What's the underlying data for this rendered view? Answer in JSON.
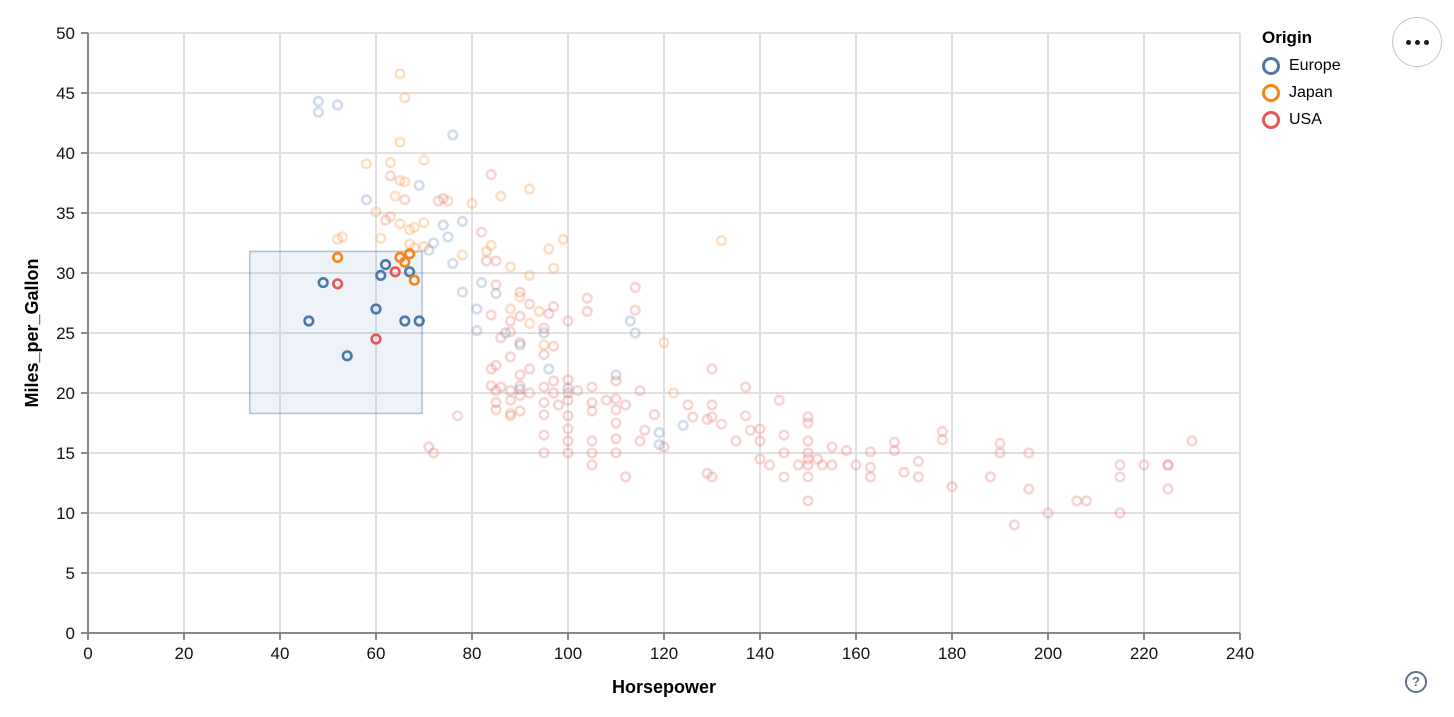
{
  "chart_data": {
    "type": "scatter",
    "title": "",
    "xlabel": "Horsepower",
    "ylabel": "Miles_per_Gallon",
    "xlim": [
      0,
      240
    ],
    "ylim": [
      0,
      50
    ],
    "xticks": [
      0,
      20,
      40,
      60,
      80,
      100,
      120,
      140,
      160,
      180,
      200,
      220,
      240
    ],
    "yticks": [
      0,
      5,
      10,
      15,
      20,
      25,
      30,
      35,
      40,
      45,
      50
    ],
    "grid": true,
    "legend": {
      "title": "Origin",
      "position": "top-right",
      "entries": [
        {
          "label": "Europe",
          "color": "#4c78a8"
        },
        {
          "label": "Japan",
          "color": "#f58518"
        },
        {
          "label": "USA",
          "color": "#e45756"
        }
      ]
    },
    "colors": {
      "Europe": "#4c78a8",
      "Japan": "#f58518",
      "USA": "#e45756"
    },
    "brush_selection": {
      "x": [
        33.7,
        69.6
      ],
      "y": [
        18.3,
        31.8
      ]
    },
    "unselected_opacity": 0.25,
    "points_format": [
      "horsepower",
      "mpg",
      "origin",
      "selected"
    ],
    "points": [
      [
        46,
        26,
        "Europe",
        1
      ],
      [
        49,
        29.2,
        "Europe",
        1
      ],
      [
        54,
        23.1,
        "Europe",
        1
      ],
      [
        60,
        27,
        "Europe",
        1
      ],
      [
        66,
        26,
        "Europe",
        1
      ],
      [
        69,
        26,
        "Europe",
        1
      ],
      [
        62,
        30.7,
        "Europe",
        1
      ],
      [
        61,
        29.8,
        "Europe",
        1
      ],
      [
        67,
        30.1,
        "Europe",
        1
      ],
      [
        52,
        31.3,
        "Japan",
        1
      ],
      [
        65,
        31.3,
        "Japan",
        1
      ],
      [
        67,
        31.6,
        "Japan",
        1
      ],
      [
        66,
        30.9,
        "Japan",
        1
      ],
      [
        68,
        29.4,
        "Japan",
        1
      ],
      [
        52,
        29.1,
        "USA",
        1
      ],
      [
        60,
        24.5,
        "USA",
        1
      ],
      [
        64,
        30.1,
        "USA",
        1
      ],
      [
        48,
        44.3,
        "Europe",
        0
      ],
      [
        48,
        43.4,
        "Europe",
        0
      ],
      [
        52,
        44,
        "Europe",
        0
      ],
      [
        76,
        41.5,
        "Europe",
        0
      ],
      [
        58,
        36.1,
        "Europe",
        0
      ],
      [
        69,
        37.3,
        "Europe",
        0
      ],
      [
        78,
        34.3,
        "Europe",
        0
      ],
      [
        74,
        34,
        "Europe",
        0
      ],
      [
        75,
        33,
        "Europe",
        0
      ],
      [
        72,
        32.5,
        "Europe",
        0
      ],
      [
        71,
        31.9,
        "Europe",
        0
      ],
      [
        76,
        30.8,
        "Europe",
        0
      ],
      [
        82,
        29.2,
        "Europe",
        0
      ],
      [
        78,
        28.4,
        "Europe",
        0
      ],
      [
        85,
        28.3,
        "Europe",
        0
      ],
      [
        81,
        27,
        "Europe",
        0
      ],
      [
        81,
        25.2,
        "Europe",
        0
      ],
      [
        113,
        26,
        "Europe",
        0
      ],
      [
        114,
        25,
        "Europe",
        0
      ],
      [
        87,
        25,
        "Europe",
        0
      ],
      [
        90,
        24,
        "Europe",
        0
      ],
      [
        95,
        25,
        "Europe",
        0
      ],
      [
        96,
        22,
        "Europe",
        0
      ],
      [
        100,
        20.4,
        "Europe",
        0
      ],
      [
        90,
        20.3,
        "Europe",
        0
      ],
      [
        110,
        21.5,
        "Europe",
        0
      ],
      [
        119,
        16.7,
        "Europe",
        0
      ],
      [
        119,
        15.7,
        "Europe",
        0
      ],
      [
        124,
        17.3,
        "Europe",
        0
      ],
      [
        65,
        46.6,
        "Japan",
        0
      ],
      [
        66,
        44.6,
        "Japan",
        0
      ],
      [
        65,
        40.9,
        "Japan",
        0
      ],
      [
        58,
        39.1,
        "Japan",
        0
      ],
      [
        63,
        39.2,
        "Japan",
        0
      ],
      [
        70,
        39.4,
        "Japan",
        0
      ],
      [
        65,
        37.7,
        "Japan",
        0
      ],
      [
        64,
        36.4,
        "Japan",
        0
      ],
      [
        66,
        37.6,
        "Japan",
        0
      ],
      [
        60,
        35.1,
        "Japan",
        0
      ],
      [
        67,
        33.6,
        "Japan",
        0
      ],
      [
        65,
        34.1,
        "Japan",
        0
      ],
      [
        68,
        33.8,
        "Japan",
        0
      ],
      [
        63,
        34.7,
        "Japan",
        0
      ],
      [
        70,
        34.2,
        "Japan",
        0
      ],
      [
        53,
        33,
        "Japan",
        0
      ],
      [
        52,
        32.8,
        "Japan",
        0
      ],
      [
        67,
        32.4,
        "Japan",
        0
      ],
      [
        68,
        32.1,
        "Japan",
        0
      ],
      [
        70,
        32.2,
        "Japan",
        0
      ],
      [
        61,
        32.9,
        "Japan",
        0
      ],
      [
        75,
        36,
        "Japan",
        0
      ],
      [
        80,
        35.8,
        "Japan",
        0
      ],
      [
        86,
        36.4,
        "Japan",
        0
      ],
      [
        92,
        37,
        "Japan",
        0
      ],
      [
        84,
        32.3,
        "Japan",
        0
      ],
      [
        83,
        31.8,
        "Japan",
        0
      ],
      [
        78,
        31.5,
        "Japan",
        0
      ],
      [
        88,
        30.5,
        "Japan",
        0
      ],
      [
        92,
        29.8,
        "Japan",
        0
      ],
      [
        97,
        30.4,
        "Japan",
        0
      ],
      [
        88,
        27,
        "Japan",
        0
      ],
      [
        90,
        28,
        "Japan",
        0
      ],
      [
        94,
        26.8,
        "Japan",
        0
      ],
      [
        96,
        32,
        "Japan",
        0
      ],
      [
        99,
        32.8,
        "Japan",
        0
      ],
      [
        132,
        32.7,
        "Japan",
        0
      ],
      [
        120,
        24.2,
        "Japan",
        0
      ],
      [
        92,
        25.8,
        "Japan",
        0
      ],
      [
        95,
        24,
        "Japan",
        0
      ],
      [
        122,
        20,
        "Japan",
        0
      ],
      [
        88,
        18.3,
        "Japan",
        0
      ],
      [
        63,
        38.1,
        "USA",
        0
      ],
      [
        66,
        36.1,
        "USA",
        0
      ],
      [
        74,
        36.2,
        "USA",
        0
      ],
      [
        73,
        36,
        "USA",
        0
      ],
      [
        84,
        38.2,
        "USA",
        0
      ],
      [
        62,
        34.4,
        "USA",
        0
      ],
      [
        82,
        33.4,
        "USA",
        0
      ],
      [
        83,
        31,
        "USA",
        0
      ],
      [
        85,
        31,
        "USA",
        0
      ],
      [
        85,
        29,
        "USA",
        0
      ],
      [
        90,
        28.4,
        "USA",
        0
      ],
      [
        92,
        27.4,
        "USA",
        0
      ],
      [
        96,
        26.6,
        "USA",
        0
      ],
      [
        88,
        26,
        "USA",
        0
      ],
      [
        84,
        26.5,
        "USA",
        0
      ],
      [
        97,
        27.2,
        "USA",
        0
      ],
      [
        90,
        26.4,
        "USA",
        0
      ],
      [
        95,
        25.4,
        "USA",
        0
      ],
      [
        88,
        25.1,
        "USA",
        0
      ],
      [
        86,
        24.6,
        "USA",
        0
      ],
      [
        100,
        26,
        "USA",
        0
      ],
      [
        90,
        24.2,
        "USA",
        0
      ],
      [
        97,
        23.9,
        "USA",
        0
      ],
      [
        95,
        23.2,
        "USA",
        0
      ],
      [
        88,
        23,
        "USA",
        0
      ],
      [
        85,
        22.3,
        "USA",
        0
      ],
      [
        84,
        22,
        "USA",
        0
      ],
      [
        92,
        22,
        "USA",
        0
      ],
      [
        90,
        21.5,
        "USA",
        0
      ],
      [
        97,
        21,
        "USA",
        0
      ],
      [
        100,
        21.1,
        "USA",
        0
      ],
      [
        104,
        27.9,
        "USA",
        0
      ],
      [
        104,
        26.8,
        "USA",
        0
      ],
      [
        114,
        28.8,
        "USA",
        0
      ],
      [
        114,
        26.9,
        "USA",
        0
      ],
      [
        130,
        22,
        "USA",
        0
      ],
      [
        84,
        20.6,
        "USA",
        0
      ],
      [
        85,
        20.2,
        "USA",
        0
      ],
      [
        85,
        19.2,
        "USA",
        0
      ],
      [
        85,
        18.6,
        "USA",
        0
      ],
      [
        86,
        20.5,
        "USA",
        0
      ],
      [
        88,
        20.2,
        "USA",
        0
      ],
      [
        88,
        19.4,
        "USA",
        0
      ],
      [
        88,
        18.1,
        "USA",
        0
      ],
      [
        90,
        20.6,
        "USA",
        0
      ],
      [
        90,
        19.8,
        "USA",
        0
      ],
      [
        90,
        18.5,
        "USA",
        0
      ],
      [
        92,
        20,
        "USA",
        0
      ],
      [
        95,
        20.5,
        "USA",
        0
      ],
      [
        95,
        19.2,
        "USA",
        0
      ],
      [
        95,
        18.2,
        "USA",
        0
      ],
      [
        97,
        20,
        "USA",
        0
      ],
      [
        98,
        19,
        "USA",
        0
      ],
      [
        100,
        20,
        "USA",
        0
      ],
      [
        100,
        19.4,
        "USA",
        0
      ],
      [
        100,
        18.1,
        "USA",
        0
      ],
      [
        102,
        20.2,
        "USA",
        0
      ],
      [
        105,
        20.5,
        "USA",
        0
      ],
      [
        105,
        19.2,
        "USA",
        0
      ],
      [
        105,
        18.5,
        "USA",
        0
      ],
      [
        108,
        19.4,
        "USA",
        0
      ],
      [
        110,
        21,
        "USA",
        0
      ],
      [
        110,
        19.5,
        "USA",
        0
      ],
      [
        110,
        18.6,
        "USA",
        0
      ],
      [
        112,
        19,
        "USA",
        0
      ],
      [
        115,
        20.2,
        "USA",
        0
      ],
      [
        77,
        18.1,
        "USA",
        0
      ],
      [
        71,
        15.5,
        "USA",
        0
      ],
      [
        72,
        15,
        "USA",
        0
      ],
      [
        95,
        16.5,
        "USA",
        0
      ],
      [
        95,
        15,
        "USA",
        0
      ],
      [
        100,
        17,
        "USA",
        0
      ],
      [
        100,
        16,
        "USA",
        0
      ],
      [
        100,
        15,
        "USA",
        0
      ],
      [
        105,
        16,
        "USA",
        0
      ],
      [
        105,
        15,
        "USA",
        0
      ],
      [
        105,
        14,
        "USA",
        0
      ],
      [
        110,
        17.5,
        "USA",
        0
      ],
      [
        110,
        16.2,
        "USA",
        0
      ],
      [
        110,
        15,
        "USA",
        0
      ],
      [
        112,
        13,
        "USA",
        0
      ],
      [
        115,
        16,
        "USA",
        0
      ],
      [
        118,
        18.2,
        "USA",
        0
      ],
      [
        120,
        15.5,
        "USA",
        0
      ],
      [
        116,
        16.9,
        "USA",
        0
      ],
      [
        125,
        19,
        "USA",
        0
      ],
      [
        129,
        17.8,
        "USA",
        0
      ],
      [
        126,
        18,
        "USA",
        0
      ],
      [
        129,
        13.3,
        "USA",
        0
      ],
      [
        130,
        13,
        "USA",
        0
      ],
      [
        130,
        19,
        "USA",
        0
      ],
      [
        130,
        18,
        "USA",
        0
      ],
      [
        132,
        17.4,
        "USA",
        0
      ],
      [
        135,
        16,
        "USA",
        0
      ],
      [
        137,
        20.5,
        "USA",
        0
      ],
      [
        137,
        18.1,
        "USA",
        0
      ],
      [
        138,
        16.9,
        "USA",
        0
      ],
      [
        140,
        17,
        "USA",
        0
      ],
      [
        140,
        16,
        "USA",
        0
      ],
      [
        140,
        14.5,
        "USA",
        0
      ],
      [
        142,
        14,
        "USA",
        0
      ],
      [
        144,
        19.4,
        "USA",
        0
      ],
      [
        145,
        16.5,
        "USA",
        0
      ],
      [
        145,
        15,
        "USA",
        0
      ],
      [
        145,
        13,
        "USA",
        0
      ],
      [
        148,
        14,
        "USA",
        0
      ],
      [
        150,
        18,
        "USA",
        0
      ],
      [
        150,
        17.5,
        "USA",
        0
      ],
      [
        150,
        16,
        "USA",
        0
      ],
      [
        150,
        15,
        "USA",
        0
      ],
      [
        150,
        14.5,
        "USA",
        0
      ],
      [
        150,
        14,
        "USA",
        0
      ],
      [
        150,
        13,
        "USA",
        0
      ],
      [
        150,
        11,
        "USA",
        0
      ],
      [
        152,
        14.5,
        "USA",
        0
      ],
      [
        153,
        14,
        "USA",
        0
      ],
      [
        155,
        15.5,
        "USA",
        0
      ],
      [
        155,
        14,
        "USA",
        0
      ],
      [
        158,
        15.2,
        "USA",
        0
      ],
      [
        160,
        14,
        "USA",
        0
      ],
      [
        163,
        15.1,
        "USA",
        0
      ],
      [
        163,
        13.8,
        "USA",
        0
      ],
      [
        163,
        13,
        "USA",
        0
      ],
      [
        168,
        15.9,
        "USA",
        0
      ],
      [
        168,
        15.2,
        "USA",
        0
      ],
      [
        170,
        13.4,
        "USA",
        0
      ],
      [
        173,
        14.3,
        "USA",
        0
      ],
      [
        173,
        13,
        "USA",
        0
      ],
      [
        178,
        16.8,
        "USA",
        0
      ],
      [
        178,
        16.1,
        "USA",
        0
      ],
      [
        180,
        12.2,
        "USA",
        0
      ],
      [
        190,
        15.8,
        "USA",
        0
      ],
      [
        190,
        15,
        "USA",
        0
      ],
      [
        196,
        15,
        "USA",
        0
      ],
      [
        188,
        13,
        "USA",
        0
      ],
      [
        196,
        12,
        "USA",
        0
      ],
      [
        200,
        10,
        "USA",
        0
      ],
      [
        193,
        9,
        "USA",
        0
      ],
      [
        206,
        11,
        "USA",
        0
      ],
      [
        208,
        11,
        "USA",
        0
      ],
      [
        215,
        14,
        "USA",
        0
      ],
      [
        215,
        13,
        "USA",
        0
      ],
      [
        215,
        10,
        "USA",
        0
      ],
      [
        220,
        14,
        "USA",
        0
      ],
      [
        225,
        14,
        "USA",
        0
      ],
      [
        225,
        14,
        "USA",
        0
      ],
      [
        225,
        12,
        "USA",
        0
      ],
      [
        230,
        16,
        "USA",
        0
      ]
    ],
    "style": {
      "grid_color": "#e0e0e0",
      "axis_color": "#888888",
      "tick_label_color": "#111111",
      "title_color": "#000000",
      "brush_fill": "rgba(114,158,215,0.12)",
      "brush_stroke": "rgba(113,143,191,0.55)"
    }
  },
  "controls": {
    "help_glyph": "?"
  }
}
